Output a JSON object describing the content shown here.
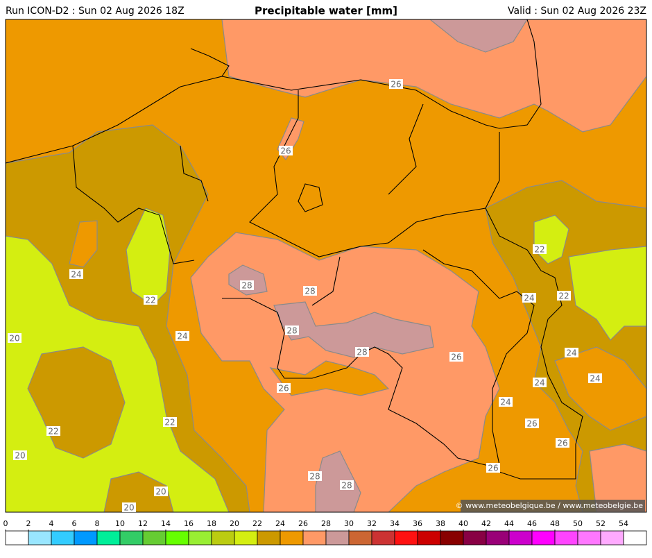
{
  "header": {
    "run": "Run ICON-D2 : Sun 02 Aug 2026 18Z",
    "title": "Precipitable water [mm]",
    "valid": "Valid : Sun 02 Aug 2026 23Z"
  },
  "map": {
    "contour_labels": [
      26,
      26,
      24,
      22,
      28,
      28,
      28,
      20,
      24,
      28,
      26,
      26,
      22,
      24,
      22,
      24,
      24,
      24,
      24,
      26,
      26,
      22,
      22,
      20,
      26,
      28,
      28,
      20,
      20
    ],
    "copyright": "© www.meteobelgique.be / www.meteobelgie.be"
  },
  "colorbar": {
    "ticks": [
      0,
      2,
      4,
      6,
      8,
      10,
      12,
      14,
      16,
      18,
      20,
      22,
      24,
      26,
      28,
      30,
      32,
      34,
      36,
      38,
      40,
      42,
      44,
      46,
      48,
      50,
      52,
      54
    ],
    "colors": [
      "#ffffff",
      "#99e6ff",
      "#33ccff",
      "#0099ff",
      "#00ee99",
      "#33cc66",
      "#66cc33",
      "#66ff00",
      "#99ee33",
      "#bbcc11",
      "#d4ee11",
      "#cc9900",
      "#ee9900",
      "#ff9966",
      "#cc9999",
      "#cc6633",
      "#cc3333",
      "#ff1111",
      "#cc0000",
      "#880000",
      "#880044",
      "#990077",
      "#cc00cc",
      "#ff00ff",
      "#ff44ff",
      "#ff77ff",
      "#ffaaff",
      "#ffffff"
    ]
  }
}
